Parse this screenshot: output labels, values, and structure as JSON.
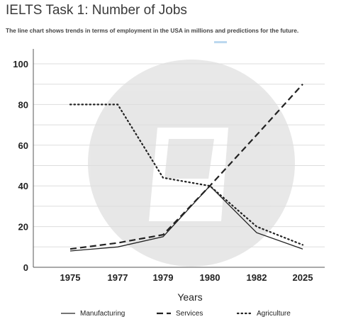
{
  "page": {
    "title": "IELTS Task 1: Number of Jobs",
    "subtitle": "The line chart shows trends in terms of employment in the USA in millions and predictions for the future."
  },
  "chart_data": {
    "type": "line",
    "title": "",
    "xlabel": "Years",
    "ylabel": "",
    "categories": [
      "1975",
      "1977",
      "1979",
      "1980",
      "1982",
      "2025"
    ],
    "yticks": [
      0,
      20,
      40,
      60,
      80,
      100
    ],
    "ylim": [
      0,
      105
    ],
    "grid": true,
    "legend_position": "bottom",
    "series": [
      {
        "name": "Manufacturing",
        "values": [
          8,
          10,
          15,
          40,
          17,
          9
        ],
        "style": "solid",
        "color": "#222222"
      },
      {
        "name": "Services",
        "values": [
          9,
          12,
          16,
          40,
          65,
          90
        ],
        "style": "dashed",
        "color": "#222222"
      },
      {
        "name": "Agriculture",
        "values": [
          80,
          80,
          44,
          40,
          20,
          11
        ],
        "style": "dotted",
        "color": "#222222"
      }
    ]
  }
}
